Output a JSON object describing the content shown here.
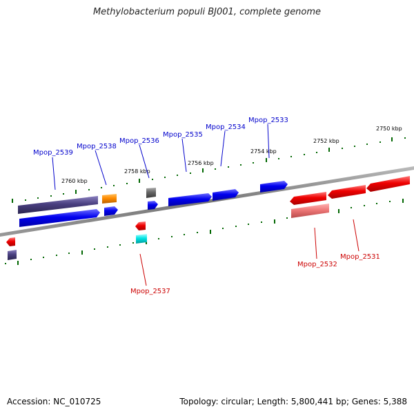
{
  "title": "Methylobacterium populi BJ001, complete genome",
  "footer": {
    "accession": "Accession: NC_010725",
    "topology": "Topology: circular; Length: 5,800,441 bp; Genes: 5,388"
  },
  "colors": {
    "backbone": "#888888",
    "forward_cds": "#0000ee",
    "reverse_cds": "#ee0000",
    "forward_label": "#0000cc",
    "reverse_label": "#cc0000",
    "tick": "#006600",
    "pseudogene_dark": "#4a4080",
    "rrna_orange": "#ff8c00",
    "gray_feature": "#666666",
    "cyan_feature": "#00e5e5",
    "light_red_feature": "#ee7777"
  },
  "scale": {
    "unit": "kbp",
    "labels": [
      "2760 kbp",
      "2758 kbp",
      "2756 kbp",
      "2754 kbp",
      "2752 kbp",
      "2750 kbp"
    ]
  },
  "genes": {
    "forward": [
      "Mpop_2539",
      "Mpop_2538",
      "Mpop_2536",
      "Mpop_2535",
      "Mpop_2534",
      "Mpop_2533"
    ],
    "reverse": [
      "Mpop_2537",
      "Mpop_2532",
      "Mpop_2531"
    ]
  }
}
